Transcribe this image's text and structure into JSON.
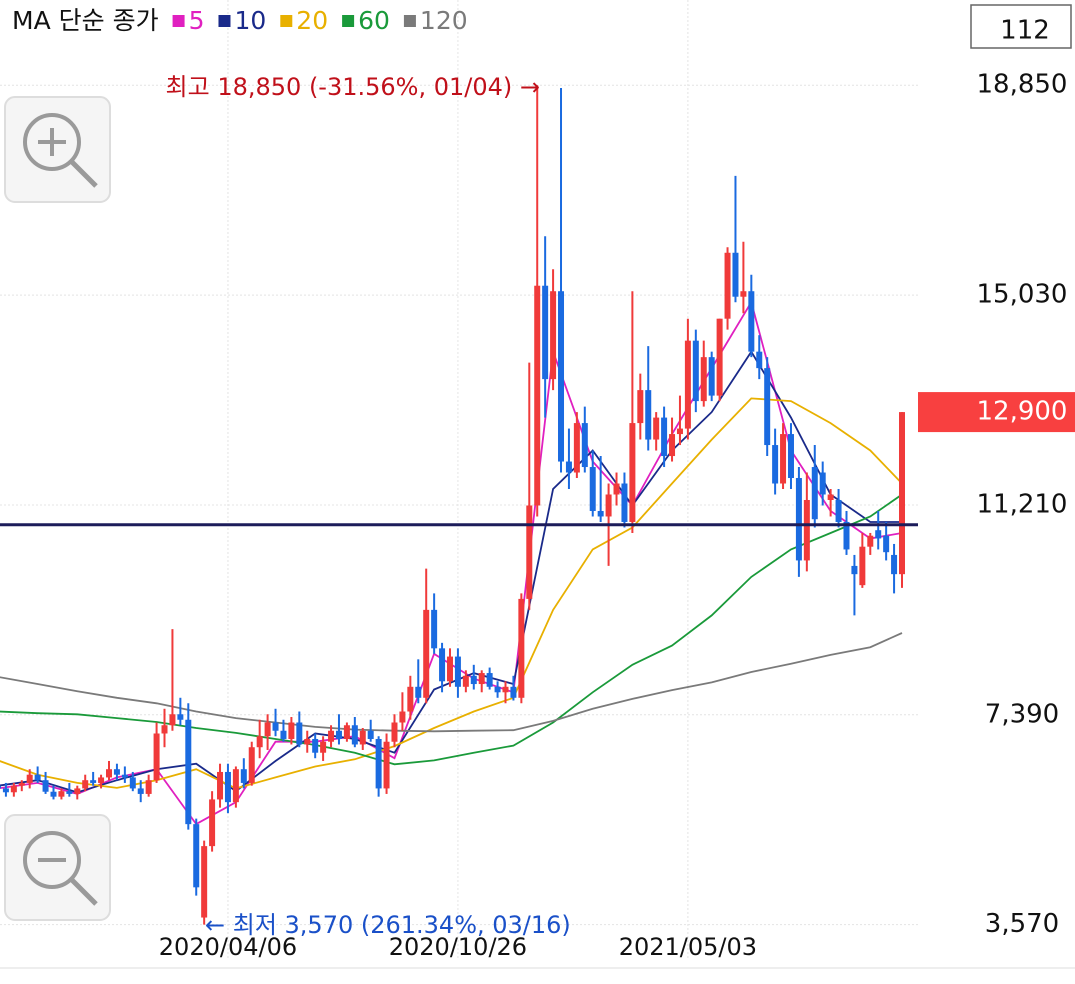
{
  "chart_data": {
    "type": "candlestick",
    "legend_title": "MA 단순 종가",
    "top_right_box": "112",
    "up_color": "#f03a3a",
    "down_color": "#1a6ae0",
    "open": [
      6100,
      6050,
      5980,
      6100,
      6150,
      6300,
      6200,
      5990,
      5900,
      6000,
      5950,
      6050,
      6200,
      6150,
      6250,
      6400,
      6300,
      6250,
      6050,
      5950,
      6200,
      7050,
      7200,
      7400,
      7300,
      5400,
      3700,
      5000,
      5850,
      6350,
      5800,
      6400,
      6150,
      6800,
      7000,
      7250,
      7100,
      6950,
      7250,
      6850,
      6950,
      6700,
      6900,
      7100,
      6950,
      7200,
      6850,
      7100,
      6950,
      6050,
      6900,
      7250,
      7450,
      7900,
      7700,
      9300,
      8600,
      8000,
      8450,
      7900,
      8100,
      7950,
      8150,
      7900,
      7800,
      7900,
      7700,
      9500,
      11200,
      15200,
      13500,
      15100,
      12000,
      11800,
      12700,
      11900,
      11100,
      11000,
      11400,
      11600,
      10900,
      12700,
      13300,
      12400,
      12800,
      12100,
      12500,
      12600,
      14200,
      13100,
      13900,
      13200,
      14600,
      15800,
      15000,
      15100,
      14000,
      13700,
      12300,
      11600,
      12500,
      11700,
      10200,
      11900,
      11800,
      11300,
      11300,
      10900,
      10100,
      9750,
      10450,
      10750,
      10650,
      10300,
      9950
    ],
    "high": [
      6250,
      6150,
      6150,
      6200,
      6400,
      6450,
      6350,
      6100,
      6050,
      6150,
      6100,
      6300,
      6350,
      6300,
      6550,
      6500,
      6450,
      6350,
      6200,
      6300,
      7250,
      7500,
      8950,
      7700,
      7600,
      5500,
      5100,
      6000,
      6500,
      6500,
      6450,
      6600,
      6900,
      7300,
      7400,
      7500,
      7300,
      7350,
      7450,
      7100,
      7050,
      7000,
      7200,
      7400,
      7250,
      7350,
      7150,
      7300,
      7000,
      7050,
      7400,
      7800,
      8100,
      8400,
      10050,
      9600,
      8700,
      8600,
      8600,
      8200,
      8300,
      8200,
      8250,
      8000,
      8000,
      8100,
      9600,
      13800,
      18850,
      16100,
      15500,
      18800,
      12600,
      12900,
      13000,
      12200,
      12100,
      11600,
      11800,
      11800,
      15100,
      13600,
      14100,
      12900,
      13000,
      12800,
      13200,
      14600,
      14400,
      14200,
      14000,
      14600,
      15900,
      17200,
      16000,
      15400,
      14300,
      13900,
      12600,
      12700,
      12700,
      11900,
      11800,
      12300,
      12000,
      11500,
      11500,
      11100,
      10300,
      10700,
      10700,
      11100,
      10900,
      10500,
      12900
    ],
    "low": [
      5950,
      5900,
      5900,
      6000,
      6050,
      6150,
      5950,
      5850,
      5850,
      5900,
      5850,
      6000,
      6100,
      6050,
      6200,
      6200,
      6150,
      6000,
      5800,
      5900,
      6150,
      6800,
      7100,
      7200,
      5300,
      4100,
      3570,
      4900,
      5700,
      5600,
      5700,
      6050,
      6100,
      6600,
      6750,
      7000,
      6900,
      6850,
      6800,
      6700,
      6600,
      6550,
      6800,
      6850,
      6900,
      6800,
      6750,
      6900,
      5900,
      5950,
      6800,
      7100,
      7300,
      7600,
      7600,
      8500,
      7800,
      7900,
      7700,
      7800,
      7850,
      7800,
      7850,
      7700,
      7600,
      7650,
      7600,
      9300,
      11000,
      12800,
      13300,
      11800,
      11500,
      11700,
      11800,
      11000,
      10900,
      10100,
      11200,
      10800,
      10700,
      12400,
      12200,
      12200,
      11900,
      12000,
      12300,
      12400,
      12900,
      13000,
      13100,
      13100,
      14400,
      14900,
      14700,
      13900,
      13500,
      12100,
      11400,
      11500,
      11500,
      9900,
      10000,
      10800,
      11200,
      11000,
      10800,
      10300,
      9200,
      9700,
      10300,
      10400,
      10200,
      9600,
      9700
    ],
    "close": [
      6050,
      5980,
      6100,
      6150,
      6300,
      6200,
      5990,
      5900,
      6000,
      5950,
      6050,
      6200,
      6150,
      6250,
      6400,
      6300,
      6250,
      6050,
      5950,
      6200,
      7050,
      7200,
      7400,
      7300,
      5400,
      4250,
      5000,
      5850,
      6350,
      5800,
      6400,
      6150,
      6800,
      7000,
      7250,
      7100,
      6950,
      7250,
      6850,
      6950,
      6700,
      6900,
      7100,
      6950,
      7200,
      6850,
      7100,
      6950,
      6050,
      6900,
      7250,
      7450,
      7900,
      7700,
      9300,
      8600,
      8000,
      8450,
      7900,
      8100,
      7950,
      8150,
      7900,
      7800,
      7900,
      7700,
      9500,
      11200,
      15200,
      13500,
      15100,
      12000,
      11800,
      12700,
      11900,
      11100,
      11000,
      11400,
      11600,
      10900,
      12700,
      13300,
      12400,
      12800,
      12100,
      12500,
      12600,
      14200,
      13100,
      13900,
      13200,
      14600,
      15800,
      15000,
      15100,
      14000,
      13700,
      12300,
      11600,
      12500,
      11700,
      10200,
      11300,
      10950,
      11400,
      11400,
      10900,
      10400,
      9950,
      10450,
      10650,
      10600,
      10350,
      9950,
      12900
    ],
    "series": [
      {
        "name": "5",
        "color": "#e020c0",
        "x": [
          0,
          5,
          10,
          15,
          20,
          25,
          30,
          35,
          40,
          45,
          50,
          55,
          60,
          65,
          70,
          75,
          80,
          85,
          90,
          95,
          100,
          105,
          110,
          114
        ],
        "values": [
          6050,
          6150,
          5950,
          6250,
          6400,
          5400,
          5800,
          6900,
          6900,
          7000,
          6600,
          8500,
          8050,
          7800,
          14000,
          12000,
          11200,
          12500,
          13700,
          14900,
          12200,
          11100,
          10600,
          10700
        ]
      },
      {
        "name": "10",
        "color": "#1a2a8a",
        "x": [
          0,
          5,
          10,
          15,
          20,
          25,
          30,
          35,
          40,
          45,
          50,
          55,
          60,
          65,
          70,
          75,
          80,
          85,
          90,
          95,
          100,
          105,
          110,
          114
        ],
        "values": [
          6100,
          6200,
          5980,
          6200,
          6400,
          6500,
          6000,
          6550,
          7050,
          6950,
          6700,
          7850,
          8150,
          7950,
          11500,
          12200,
          11200,
          12200,
          12900,
          14000,
          12800,
          11400,
          10900,
          10900
        ]
      },
      {
        "name": "20",
        "color": "#e8b000",
        "x": [
          0,
          5,
          10,
          15,
          20,
          25,
          30,
          35,
          40,
          45,
          50,
          55,
          60,
          65,
          70,
          75,
          80,
          85,
          90,
          95,
          100,
          105,
          110,
          114
        ],
        "values": [
          6560,
          6300,
          6150,
          6060,
          6200,
          6400,
          6050,
          6250,
          6450,
          6580,
          6820,
          7150,
          7450,
          7700,
          9300,
          10400,
          10800,
          11600,
          12400,
          13150,
          13100,
          12700,
          12200,
          11600
        ]
      },
      {
        "name": "60",
        "color": "#1a9a3a",
        "x": [
          0,
          5,
          10,
          15,
          20,
          25,
          30,
          35,
          40,
          45,
          50,
          55,
          60,
          65,
          70,
          75,
          80,
          85,
          90,
          95,
          100,
          105,
          110,
          114
        ],
        "values": [
          7450,
          7420,
          7400,
          7330,
          7260,
          7150,
          7060,
          6950,
          6840,
          6700,
          6490,
          6560,
          6700,
          6830,
          7250,
          7800,
          8300,
          8650,
          9200,
          9900,
          10400,
          10700,
          11000,
          11400
        ]
      },
      {
        "name": "120",
        "color": "#7a7a7a",
        "x": [
          0,
          5,
          10,
          15,
          20,
          25,
          30,
          35,
          40,
          45,
          50,
          55,
          60,
          65,
          70,
          75,
          80,
          85,
          90,
          95,
          100,
          105,
          110,
          114
        ],
        "values": [
          8080,
          7950,
          7820,
          7700,
          7600,
          7450,
          7330,
          7250,
          7170,
          7120,
          7100,
          7090,
          7100,
          7110,
          7280,
          7500,
          7680,
          7840,
          7980,
          8170,
          8320,
          8480,
          8620,
          8880
        ]
      }
    ],
    "ylim": [
      3000,
      19800
    ],
    "yticks": [
      {
        "value": 3570,
        "label": "3,570"
      },
      {
        "value": 7390,
        "label": "7,390"
      },
      {
        "value": 11210,
        "label": "11,210"
      },
      {
        "value": 15030,
        "label": "15,030"
      },
      {
        "value": 18850,
        "label": "18,850"
      }
    ],
    "xlim": [
      -0.25,
      115.5
    ],
    "xticks": [
      {
        "value": 29,
        "label": "2020/04/06"
      },
      {
        "value": 58,
        "label": "2020/10/26"
      },
      {
        "value": 87,
        "label": "2021/05/03"
      }
    ],
    "grid": true,
    "hline": 10850,
    "hline_color": "#1c1c5a",
    "last_price": {
      "value": 12900,
      "label": "12,900"
    },
    "annotations": [
      "최고 18,850 (-31.56%, 01/04) →",
      "← 최저 3,570 (261.34%, 03/16)"
    ]
  }
}
